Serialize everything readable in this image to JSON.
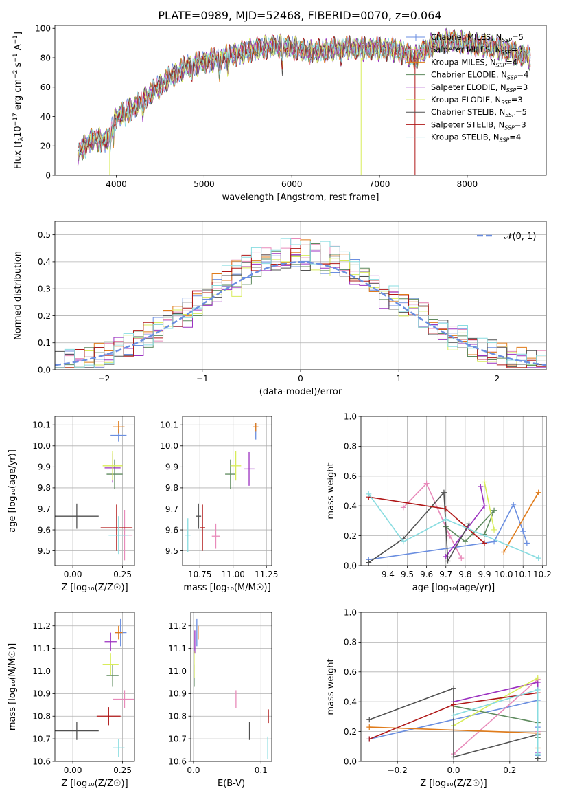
{
  "figure_title": "PLATE=0989, MJD=52468, FIBERID=0070, z=0.064",
  "colors": [
    "#6a8ee0",
    "#e88aba",
    "#e07b1a",
    "#5e8a5e",
    "#9b30c0",
    "#d8ec5a",
    "#505050",
    "#b01818",
    "#88dce0"
  ],
  "chart_data": [
    {
      "id": "spectrum",
      "type": "line",
      "xlabel": "wavelength [Angstrom, rest frame]",
      "ylabel_main": "Flux [f",
      "ylabel_sub": "λ",
      "ylabel_rest": "10",
      "ylabel_exp": "−17",
      "ylabel_units": " erg cm",
      "ylabel_exp2": "−2",
      "ylabel_units2": " s",
      "ylabel_exp3": "−1",
      "ylabel_units3": " A",
      "ylabel_exp4": "−1",
      "ylabel_end": "]",
      "xlim": [
        3300,
        8900
      ],
      "ylim": [
        0,
        102
      ],
      "xticks": [
        4000,
        5000,
        6000,
        7000,
        8000
      ],
      "yticks": [
        0,
        20,
        40,
        60,
        80,
        100
      ],
      "continuum_x": [
        3560,
        3700,
        3900,
        4000,
        4200,
        4400,
        4600,
        4800,
        5000,
        5200,
        5400,
        5600,
        5800,
        6000,
        6200,
        6400,
        6600,
        6800,
        7000,
        7200,
        7400,
        7600,
        7800,
        8000,
        8200,
        8400,
        8600,
        8720
      ],
      "continuum_y": [
        14,
        24,
        24,
        40,
        46,
        56,
        66,
        74,
        77,
        80,
        83,
        86,
        88,
        87,
        84,
        85,
        87,
        86,
        86,
        85,
        80,
        89,
        92,
        90,
        88,
        86,
        82,
        80
      ],
      "series": [
        {
          "name": "Chabrier MILES",
          "nssp": "5"
        },
        {
          "name": "Salpeter MILES",
          "nssp": "3"
        },
        {
          "name": "Kroupa MILES",
          "nssp": "4"
        },
        {
          "name": "Chabrier ELODIE",
          "nssp": "4"
        },
        {
          "name": "Salpeter ELODIE",
          "nssp": "3"
        },
        {
          "name": "Kroupa ELODIE",
          "nssp": "3"
        },
        {
          "name": "Chabrier STELIB",
          "nssp": "5"
        },
        {
          "name": "Salpeter STELIB",
          "nssp": "3"
        },
        {
          "name": "Kroupa STELIB",
          "nssp": "4"
        }
      ],
      "legend_sub": "SSP",
      "legend": "top-right",
      "grid": false
    },
    {
      "id": "residuals",
      "type": "histogram",
      "xlabel": "(data-model)/error",
      "ylabel": "Normed distribution",
      "xlim": [
        -2.5,
        2.5
      ],
      "ylim": [
        0,
        0.55
      ],
      "xticks": [
        -2,
        -1,
        0,
        1,
        2
      ],
      "yticks": [
        0.0,
        0.1,
        0.2,
        0.3,
        0.4,
        0.5
      ],
      "bin_width": 0.1,
      "normal_label": "𝒩(0, 1)",
      "legend": "top-right",
      "grid": true
    },
    {
      "id": "age_vs_Z",
      "type": "scatter",
      "xlabel": "Z [log₁₀(Z/Z☉)]",
      "ylabel": "age  [log₁₀(age/yr)]",
      "xlim": [
        -0.09,
        0.31
      ],
      "ylim": [
        9.43,
        10.14
      ],
      "xticks": [
        0.0,
        0.25
      ],
      "yticks": [
        9.5,
        9.6,
        9.7,
        9.8,
        9.9,
        10.0,
        10.1
      ],
      "grid": true,
      "points": [
        {
          "x": 0.23,
          "y": 10.05,
          "xerr": 0.04,
          "yerr": 0.03
        },
        {
          "x": 0.26,
          "y": 9.575,
          "xerr": 0.04,
          "yerr": 0.12
        },
        {
          "x": 0.23,
          "y": 10.09,
          "xerr": 0.03,
          "yerr": 0.03
        },
        {
          "x": 0.21,
          "y": 9.865,
          "xerr": 0.04,
          "yerr": 0.07
        },
        {
          "x": 0.2,
          "y": 9.895,
          "xerr": 0.04,
          "yerr": 0.07
        },
        {
          "x": 0.2,
          "y": 9.905,
          "xerr": 0.05,
          "yerr": 0.07
        },
        {
          "x": 0.02,
          "y": 9.665,
          "xerr": 0.11,
          "yerr": 0.06
        },
        {
          "x": 0.22,
          "y": 9.61,
          "xerr": 0.08,
          "yerr": 0.11
        },
        {
          "x": 0.23,
          "y": 9.575,
          "xerr": 0.05,
          "yerr": 0.09
        }
      ]
    },
    {
      "id": "age_vs_mass",
      "type": "scatter",
      "xlabel": "mass [log₁₀(M/M☉)]",
      "ylabel": "",
      "xlim": [
        10.62,
        11.29
      ],
      "ylim": [
        9.43,
        10.14
      ],
      "xticks": [
        10.75,
        11.0,
        11.25
      ],
      "yticks": [
        9.5,
        9.6,
        9.7,
        9.8,
        9.9,
        10.0,
        10.1
      ],
      "grid": true,
      "points": [
        {
          "x": 11.17,
          "y": 10.07,
          "xerr": 0.0,
          "yerr": 0.04
        },
        {
          "x": 10.87,
          "y": 9.57,
          "xerr": 0.03,
          "yerr": 0.06
        },
        {
          "x": 11.17,
          "y": 10.09,
          "xerr": 0.02,
          "yerr": 0.02
        },
        {
          "x": 10.98,
          "y": 9.865,
          "xerr": 0.04,
          "yerr": 0.07
        },
        {
          "x": 11.12,
          "y": 9.89,
          "xerr": 0.04,
          "yerr": 0.08
        },
        {
          "x": 11.02,
          "y": 9.905,
          "xerr": 0.04,
          "yerr": 0.07
        },
        {
          "x": 10.74,
          "y": 9.665,
          "xerr": 0.02,
          "yerr": 0.06
        },
        {
          "x": 10.77,
          "y": 9.61,
          "xerr": 0.02,
          "yerr": 0.11
        },
        {
          "x": 10.66,
          "y": 9.575,
          "xerr": 0.02,
          "yerr": 0.08
        }
      ]
    },
    {
      "id": "mw_vs_age",
      "type": "line",
      "xlabel": "age  [log₁₀(age/yr)]",
      "ylabel": "mass weight",
      "xlim": [
        9.26,
        10.22
      ],
      "ylim": [
        0,
        1.0
      ],
      "xticks": [
        9.4,
        9.5,
        9.6,
        9.7,
        9.8,
        9.9,
        10.0,
        10.1,
        10.2
      ],
      "yticks": [
        0.0,
        0.2,
        0.4,
        0.6,
        0.8,
        1.0
      ],
      "grid": true,
      "series": [
        {
          "x": [
            9.3,
            9.95,
            10.05,
            10.1,
            10.12
          ],
          "y": [
            0.04,
            0.16,
            0.41,
            0.23,
            0.15
          ]
        },
        {
          "x": [
            9.48,
            9.6,
            9.72,
            9.78
          ],
          "y": [
            0.39,
            0.55,
            0.2,
            0.05
          ]
        },
        {
          "x": [
            10.0,
            10.18
          ],
          "y": [
            0.09,
            0.49
          ]
        },
        {
          "x": [
            9.7,
            9.8,
            9.95,
            9.9
          ],
          "y": [
            0.26,
            0.16,
            0.37,
            0.21
          ]
        },
        {
          "x": [
            9.7,
            9.9,
            9.88
          ],
          "y": [
            0.06,
            0.4,
            0.53
          ]
        },
        {
          "x": [
            9.9,
            9.95
          ],
          "y": [
            0.56,
            0.24
          ]
        },
        {
          "x": [
            9.3,
            9.48,
            9.69,
            9.71,
            9.82
          ],
          "y": [
            0.02,
            0.18,
            0.49,
            0.03,
            0.28
          ]
        },
        {
          "x": [
            9.3,
            9.7,
            9.9
          ],
          "y": [
            0.46,
            0.38,
            0.15
          ]
        },
        {
          "x": [
            9.3,
            9.48,
            9.7,
            10.18
          ],
          "y": [
            0.48,
            0.16,
            0.31,
            0.05
          ]
        }
      ]
    },
    {
      "id": "mass_vs_Z",
      "type": "scatter",
      "xlabel": "Z [log₁₀(Z/Z☉)]",
      "ylabel": "mass [log₁₀(M/M☉)]",
      "xlim": [
        -0.09,
        0.31
      ],
      "ylim": [
        10.6,
        11.26
      ],
      "xticks": [
        0.0,
        0.25
      ],
      "yticks": [
        10.6,
        10.7,
        10.8,
        10.9,
        11.0,
        11.1,
        11.2
      ],
      "grid": true,
      "points": [
        {
          "x": 0.24,
          "y": 11.17,
          "xerr": 0.03,
          "yerr": 0.06
        },
        {
          "x": 0.26,
          "y": 10.875,
          "xerr": 0.06,
          "yerr": 0.04
        },
        {
          "x": 0.23,
          "y": 11.17,
          "xerr": 0.02,
          "yerr": 0.03
        },
        {
          "x": 0.2,
          "y": 10.98,
          "xerr": 0.03,
          "yerr": 0.05
        },
        {
          "x": 0.19,
          "y": 11.13,
          "xerr": 0.03,
          "yerr": 0.04
        },
        {
          "x": 0.19,
          "y": 11.03,
          "xerr": 0.04,
          "yerr": 0.05
        },
        {
          "x": 0.02,
          "y": 10.735,
          "xerr": 0.11,
          "yerr": 0.04
        },
        {
          "x": 0.18,
          "y": 10.8,
          "xerr": 0.06,
          "yerr": 0.04
        },
        {
          "x": 0.23,
          "y": 10.66,
          "xerr": 0.03,
          "yerr": 0.04
        }
      ]
    },
    {
      "id": "mass_vs_ebv",
      "type": "scatter",
      "xlabel": "E(B-V)",
      "ylabel": "",
      "xlim": [
        -0.004,
        0.116
      ],
      "ylim": [
        10.6,
        11.26
      ],
      "xticks": [
        0.0,
        0.1
      ],
      "yticks": [
        10.6,
        10.7,
        10.8,
        10.9,
        11.0,
        11.1,
        11.2
      ],
      "grid": true,
      "points": [
        {
          "x": 0.005,
          "y": 11.17,
          "xerr": 0,
          "yerr": 0.06
        },
        {
          "x": 0.063,
          "y": 10.875,
          "xerr": 0,
          "yerr": 0.04
        },
        {
          "x": 0.007,
          "y": 11.17,
          "xerr": 0,
          "yerr": 0.03
        },
        {
          "x": 0.001,
          "y": 10.98,
          "xerr": 0,
          "yerr": 0.05
        },
        {
          "x": 0.002,
          "y": 11.13,
          "xerr": 0,
          "yerr": 0.05
        },
        {
          "x": 0.001,
          "y": 11.03,
          "xerr": 0,
          "yerr": 0.06
        },
        {
          "x": 0.083,
          "y": 10.735,
          "xerr": 0,
          "yerr": 0.04
        },
        {
          "x": 0.111,
          "y": 10.8,
          "xerr": 0,
          "yerr": 0.03
        },
        {
          "x": 0.11,
          "y": 10.66,
          "xerr": 0,
          "yerr": 0.05
        }
      ]
    },
    {
      "id": "mw_vs_Z",
      "type": "line",
      "xlabel": "Z [log₁₀(Z/Z☉)]",
      "ylabel": "mass weight",
      "xlim": [
        -0.33,
        0.33
      ],
      "ylim": [
        0,
        1.0
      ],
      "xticks": [
        -0.2,
        0.0,
        0.2
      ],
      "yticks": [
        0.0,
        0.2,
        0.4,
        0.6,
        0.8,
        1.0
      ],
      "grid": true,
      "series": [
        {
          "x": [
            -0.3,
            0.3,
            0.3,
            0.3
          ],
          "y": [
            0.15,
            0.41,
            0.23,
            0.04
          ]
        },
        {
          "x": [
            0.0,
            0.3,
            0.3
          ],
          "y": [
            0.05,
            0.55,
            0.2
          ]
        },
        {
          "x": [
            -0.3,
            0.3,
            0.3
          ],
          "y": [
            0.23,
            0.19,
            0.09
          ]
        },
        {
          "x": [
            0.0,
            0.3,
            0.3
          ],
          "y": [
            0.37,
            0.26,
            0.16
          ]
        },
        {
          "x": [
            0.0,
            0.3,
            0.3
          ],
          "y": [
            0.4,
            0.53,
            0.06
          ]
        },
        {
          "x": [
            0.0,
            0.3
          ],
          "y": [
            0.24,
            0.56
          ]
        },
        {
          "x": [
            -0.3,
            0.0,
            0.0,
            0.3,
            0.3
          ],
          "y": [
            0.28,
            0.49,
            0.03,
            0.18,
            0.02
          ]
        },
        {
          "x": [
            -0.3,
            0.0,
            0.3
          ],
          "y": [
            0.15,
            0.38,
            0.46
          ]
        },
        {
          "x": [
            0.0,
            0.3,
            0.3
          ],
          "y": [
            0.31,
            0.48,
            0.05
          ]
        }
      ]
    }
  ]
}
